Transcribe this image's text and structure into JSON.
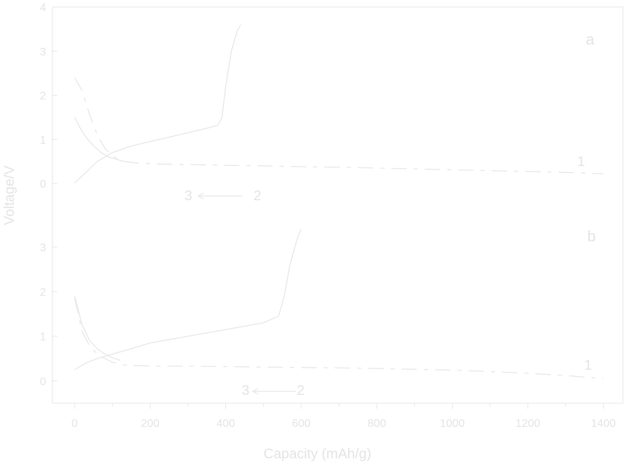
{
  "chart_data": [
    {
      "type": "line",
      "panel_label": "a",
      "xlabel": "Capacity (mAh/g)",
      "ylabel": "Voltage/V",
      "xlim": [
        -50,
        1410
      ],
      "ylim": [
        0,
        4
      ],
      "x_ticks": [
        "0",
        "200",
        "400",
        "600",
        "800",
        "1000",
        "1200",
        "1400"
      ],
      "y_ticks": [
        "4",
        "3",
        "2",
        "1",
        "0"
      ],
      "grid": false,
      "line_color": "#e6e6e6",
      "annotations": [
        "1",
        "3",
        "2"
      ],
      "series": [
        {
          "label": "1",
          "style": "dashed",
          "x": [
            0,
            20,
            40,
            60,
            80,
            100,
            130,
            170,
            230,
            300,
            400,
            500,
            600,
            700,
            800,
            900,
            1000,
            1100,
            1200,
            1300,
            1400
          ],
          "y": [
            2.4,
            2.1,
            1.55,
            1.1,
            0.8,
            0.62,
            0.5,
            0.46,
            0.44,
            0.43,
            0.41,
            0.4,
            0.38,
            0.37,
            0.35,
            0.33,
            0.31,
            0.29,
            0.27,
            0.25,
            0.22
          ]
        },
        {
          "label": "2",
          "style": "solid",
          "x": [
            0,
            30,
            60,
            100,
            150,
            200,
            250,
            300,
            350,
            380,
            390,
            400,
            415,
            430,
            440
          ],
          "y": [
            0.01,
            0.25,
            0.5,
            0.7,
            0.85,
            0.95,
            1.05,
            1.15,
            1.25,
            1.32,
            1.5,
            2.2,
            3.0,
            3.45,
            3.6
          ]
        },
        {
          "label": "3",
          "style": "solid",
          "x": [
            0,
            15,
            30,
            50,
            70,
            90,
            110,
            130
          ],
          "y": [
            1.5,
            1.25,
            1.05,
            0.85,
            0.7,
            0.6,
            0.55,
            0.5
          ]
        }
      ]
    },
    {
      "type": "line",
      "panel_label": "b",
      "xlabel": "Capacity (mAh/g)",
      "ylabel": "Voltage/V",
      "xlim": [
        -50,
        1410
      ],
      "ylim": [
        0,
        4
      ],
      "x_ticks": [
        "0",
        "200",
        "400",
        "600",
        "800",
        "1000",
        "1200",
        "1400"
      ],
      "y_ticks": [
        "3",
        "2",
        "1",
        "0"
      ],
      "grid": false,
      "line_color": "#e6e6e6",
      "annotations": [
        "1",
        "3",
        "2"
      ],
      "series": [
        {
          "label": "1",
          "style": "dashed",
          "x": [
            0,
            10,
            20,
            40,
            60,
            80,
            100,
            130,
            170,
            230,
            300,
            400,
            500,
            600,
            700,
            800,
            900,
            1000,
            1100,
            1200,
            1300,
            1400
          ],
          "y": [
            1.85,
            1.5,
            1.1,
            0.78,
            0.6,
            0.5,
            0.42,
            0.36,
            0.34,
            0.33,
            0.33,
            0.32,
            0.31,
            0.3,
            0.29,
            0.28,
            0.26,
            0.24,
            0.21,
            0.17,
            0.12,
            0.05
          ]
        },
        {
          "label": "2",
          "style": "solid",
          "x": [
            0,
            30,
            60,
            100,
            150,
            200,
            300,
            400,
            500,
            540,
            555,
            570,
            590,
            600
          ],
          "y": [
            0.25,
            0.4,
            0.5,
            0.6,
            0.72,
            0.85,
            1.0,
            1.15,
            1.3,
            1.45,
            1.9,
            2.6,
            3.2,
            3.4
          ]
        },
        {
          "label": "3",
          "style": "solid",
          "x": [
            0,
            20,
            40,
            60,
            80,
            100,
            120
          ],
          "y": [
            1.9,
            1.25,
            0.9,
            0.72,
            0.6,
            0.52,
            0.46
          ]
        }
      ]
    }
  ]
}
